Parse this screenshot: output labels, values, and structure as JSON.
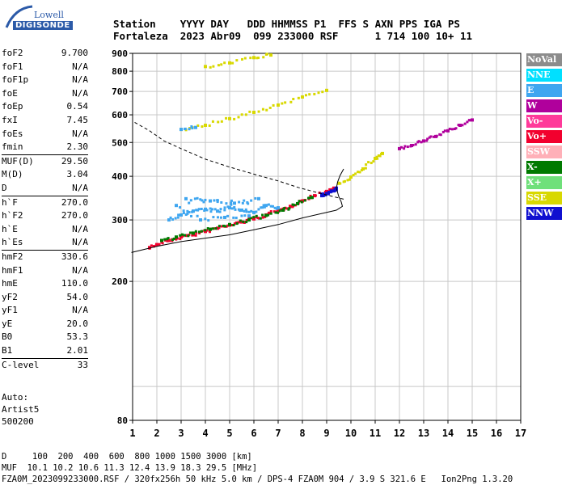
{
  "logo": {
    "line1": "Lowell",
    "line2": "DIGISONDE"
  },
  "header": {
    "row1": "Station    YYYY DAY   DDD HHMMSS P1  FFS S AXN PPS IGA PS",
    "row2": "Fortaleza  2023 Abr09  099 233000 RSF      1 714 100 10+ 11"
  },
  "params": {
    "group1": [
      {
        "label": "foF2",
        "value": "9.700"
      },
      {
        "label": "foF1",
        "value": "N/A"
      },
      {
        "label": "foF1p",
        "value": "N/A"
      },
      {
        "label": "foE",
        "value": "N/A"
      },
      {
        "label": "foEp",
        "value": "0.54"
      },
      {
        "label": "fxI",
        "value": "7.45"
      },
      {
        "label": "foEs",
        "value": "N/A"
      },
      {
        "label": "fmin",
        "value": "2.30"
      }
    ],
    "group2": [
      {
        "label": "MUF(D)",
        "value": "29.50"
      },
      {
        "label": "M(D)",
        "value": "3.04"
      },
      {
        "label": "D",
        "value": "N/A"
      }
    ],
    "group3": [
      {
        "label": "h`F",
        "value": "270.0"
      },
      {
        "label": "h`F2",
        "value": "270.0"
      },
      {
        "label": "h`E",
        "value": "N/A"
      },
      {
        "label": "h`Es",
        "value": "N/A"
      }
    ],
    "group4": [
      {
        "label": "hmF2",
        "value": "330.6"
      },
      {
        "label": "hmF1",
        "value": "N/A"
      },
      {
        "label": "hmE",
        "value": "110.0"
      },
      {
        "label": "yF2",
        "value": "54.0"
      },
      {
        "label": "yF1",
        "value": "N/A"
      },
      {
        "label": "yE",
        "value": "20.0"
      },
      {
        "label": "B0",
        "value": "53.3"
      },
      {
        "label": "B1",
        "value": "2.01"
      }
    ],
    "group5": [
      {
        "label": "C-level",
        "value": "33"
      }
    ]
  },
  "auto": {
    "line1": "Auto:",
    "line2": "Artist5",
    "line3": "500200"
  },
  "legend": [
    {
      "label": "NoVal",
      "color": "#8c8c8c"
    },
    {
      "label": "NNE",
      "color": "#00e0ff"
    },
    {
      "label": "E",
      "color": "#3fa6f0"
    },
    {
      "label": "W",
      "color": "#b0009c"
    },
    {
      "label": "Vo-",
      "color": "#ff3a9a"
    },
    {
      "label": "Vo+",
      "color": "#f2002e"
    },
    {
      "label": "SSW",
      "color": "#ffb0b8"
    },
    {
      "label": "X-",
      "color": "#007a00"
    },
    {
      "label": "X+",
      "color": "#6fe07a"
    },
    {
      "label": "SSE",
      "color": "#d8d800"
    },
    {
      "label": "NNW",
      "color": "#1010d0"
    }
  ],
  "footer": {
    "line1": "D     100  200  400  600  800 1000 1500 3000 [km]",
    "line2": "MUF  10.1 10.2 10.6 11.3 12.4 13.9 18.3 29.5 [MHz]",
    "line3": "FZA0M_2023099233000.RSF / 320fx256h 50 kHz 5.0 km / DPS-4 FZA0M 904 / 3.9 S 321.6 E   Ion2Png 1.3.20"
  },
  "chart_data": {
    "type": "scatter",
    "xlim": [
      1,
      17
    ],
    "ylim": [
      80,
      900
    ],
    "y_scale": "log",
    "x_ticks": [
      1,
      2,
      3,
      4,
      5,
      6,
      7,
      8,
      9,
      10,
      11,
      12,
      13,
      14,
      15,
      16,
      17
    ],
    "y_ticks": [
      80,
      200,
      300,
      400,
      500,
      600,
      700,
      800,
      900
    ],
    "grid": true,
    "traces": [
      {
        "name": "F2 O-trace",
        "color": "#f2002e",
        "points": [
          [
            1.7,
            250
          ],
          [
            2,
            255
          ],
          [
            2.5,
            262
          ],
          [
            3,
            268
          ],
          [
            3.5,
            272
          ],
          [
            4,
            278
          ],
          [
            4.5,
            284
          ],
          [
            5,
            290
          ],
          [
            5.5,
            296
          ],
          [
            6,
            302
          ],
          [
            6.5,
            310
          ],
          [
            7,
            318
          ],
          [
            7.5,
            328
          ],
          [
            8,
            340
          ],
          [
            8.5,
            352
          ],
          [
            9,
            362
          ],
          [
            9.3,
            370
          ]
        ]
      },
      {
        "name": "F2 X-trace",
        "color": "#007a00",
        "points": [
          [
            2.2,
            262
          ],
          [
            2.8,
            268
          ],
          [
            3.5,
            275
          ],
          [
            4.2,
            282
          ],
          [
            5,
            291
          ],
          [
            5.8,
            300
          ],
          [
            6.5,
            309
          ],
          [
            7.2,
            320
          ],
          [
            7.8,
            334
          ],
          [
            8.4,
            348
          ]
        ]
      },
      {
        "name": "F2 W-trace",
        "color": "#1010d0",
        "points": [
          [
            8.8,
            352
          ],
          [
            9,
            357
          ],
          [
            9.2,
            363
          ],
          [
            9.4,
            370
          ]
        ]
      },
      {
        "name": "spread-F E",
        "color": "#3fa6f0",
        "points": [
          [
            2.5,
            300
          ],
          [
            3,
            310
          ],
          [
            3.5,
            318
          ],
          [
            4,
            322
          ],
          [
            4.5,
            318
          ],
          [
            5,
            325
          ],
          [
            5.5,
            320
          ],
          [
            6,
            315
          ],
          [
            6.5,
            330
          ],
          [
            7,
            325
          ],
          [
            3.2,
            345
          ],
          [
            4.2,
            340
          ],
          [
            5.2,
            335
          ],
          [
            6.2,
            345
          ],
          [
            2.8,
            330
          ],
          [
            3.8,
            300
          ],
          [
            4.8,
            305
          ],
          [
            5.8,
            308
          ]
        ]
      },
      {
        "name": "SSE upper",
        "color": "#d8d800",
        "points": [
          [
            9.5,
            382
          ],
          [
            10,
            398
          ],
          [
            10.5,
            420
          ],
          [
            11,
            450
          ],
          [
            11.3,
            465
          ]
        ]
      },
      {
        "name": "W upper",
        "color": "#b0009c",
        "points": [
          [
            12,
            480
          ],
          [
            12.5,
            490
          ],
          [
            13,
            505
          ],
          [
            13.5,
            520
          ],
          [
            14,
            540
          ],
          [
            14.5,
            560
          ],
          [
            15,
            580
          ]
        ]
      },
      {
        "name": "2nd hop",
        "color": "#d8d800",
        "points": [
          [
            3,
            545
          ],
          [
            4,
            560
          ],
          [
            5,
            585
          ],
          [
            6,
            610
          ],
          [
            7,
            640
          ],
          [
            8,
            675
          ],
          [
            9,
            705
          ]
        ]
      },
      {
        "name": "3rd hop",
        "color": "#d8d800",
        "points": [
          [
            4,
            825
          ],
          [
            5,
            845
          ],
          [
            6,
            875
          ],
          [
            6.7,
            890
          ]
        ]
      },
      {
        "name": "3rd hop E",
        "color": "#3fa6f0",
        "points": [
          [
            3,
            545
          ],
          [
            3.6,
            552
          ]
        ]
      }
    ],
    "profile_curve": [
      [
        0.95,
        242
      ],
      [
        2,
        252
      ],
      [
        3,
        260
      ],
      [
        4,
        266
      ],
      [
        5,
        272
      ],
      [
        6,
        281
      ],
      [
        7,
        291
      ],
      [
        8,
        304
      ],
      [
        8.8,
        313
      ],
      [
        9.4,
        320
      ],
      [
        9.65,
        328
      ],
      [
        9.6,
        338
      ],
      [
        9.5,
        350
      ],
      [
        9.4,
        370
      ],
      [
        9.45,
        385
      ],
      [
        9.55,
        402
      ],
      [
        9.7,
        420
      ]
    ],
    "dashed_curve": [
      [
        9.7,
        344
      ],
      [
        8.7,
        358
      ],
      [
        7.8,
        372
      ],
      [
        7,
        388
      ],
      [
        6.2,
        402
      ],
      [
        5,
        425
      ],
      [
        4,
        448
      ],
      [
        3,
        480
      ],
      [
        2.3,
        505
      ],
      [
        1.7,
        540
      ],
      [
        1.3,
        560
      ],
      [
        1.0,
        575
      ]
    ]
  }
}
